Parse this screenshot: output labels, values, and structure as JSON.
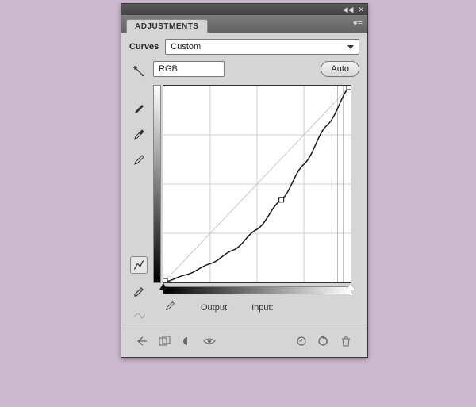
{
  "panel": {
    "tab_label": "ADJUSTMENTS",
    "title": "Curves",
    "preset_selected": "Custom",
    "channel_selected": "RGB",
    "auto_label": "Auto",
    "output_label": "Output:",
    "input_label": "Input:"
  },
  "colors": {
    "page_bg": "#cdb9cf",
    "panel_bg": "#d5d5d5",
    "graph_bg": "#ffffff",
    "grid": "#cfcfcf",
    "guide": "#bdbdbd",
    "curve": "#1a1a1a",
    "border": "#333333"
  },
  "curve": {
    "type": "curves",
    "size": 238,
    "grid_divisions": 4,
    "points_norm": [
      [
        0.0,
        0.0
      ],
      [
        0.125,
        0.04
      ],
      [
        0.25,
        0.095
      ],
      [
        0.375,
        0.165
      ],
      [
        0.5,
        0.27
      ],
      [
        0.63,
        0.42
      ],
      [
        0.75,
        0.6
      ],
      [
        0.875,
        0.8
      ],
      [
        1.0,
        1.0
      ]
    ],
    "control_point_norm": [
      0.63,
      0.42
    ],
    "vertical_guides_norm": [
      0.9,
      0.93,
      0.96
    ]
  }
}
